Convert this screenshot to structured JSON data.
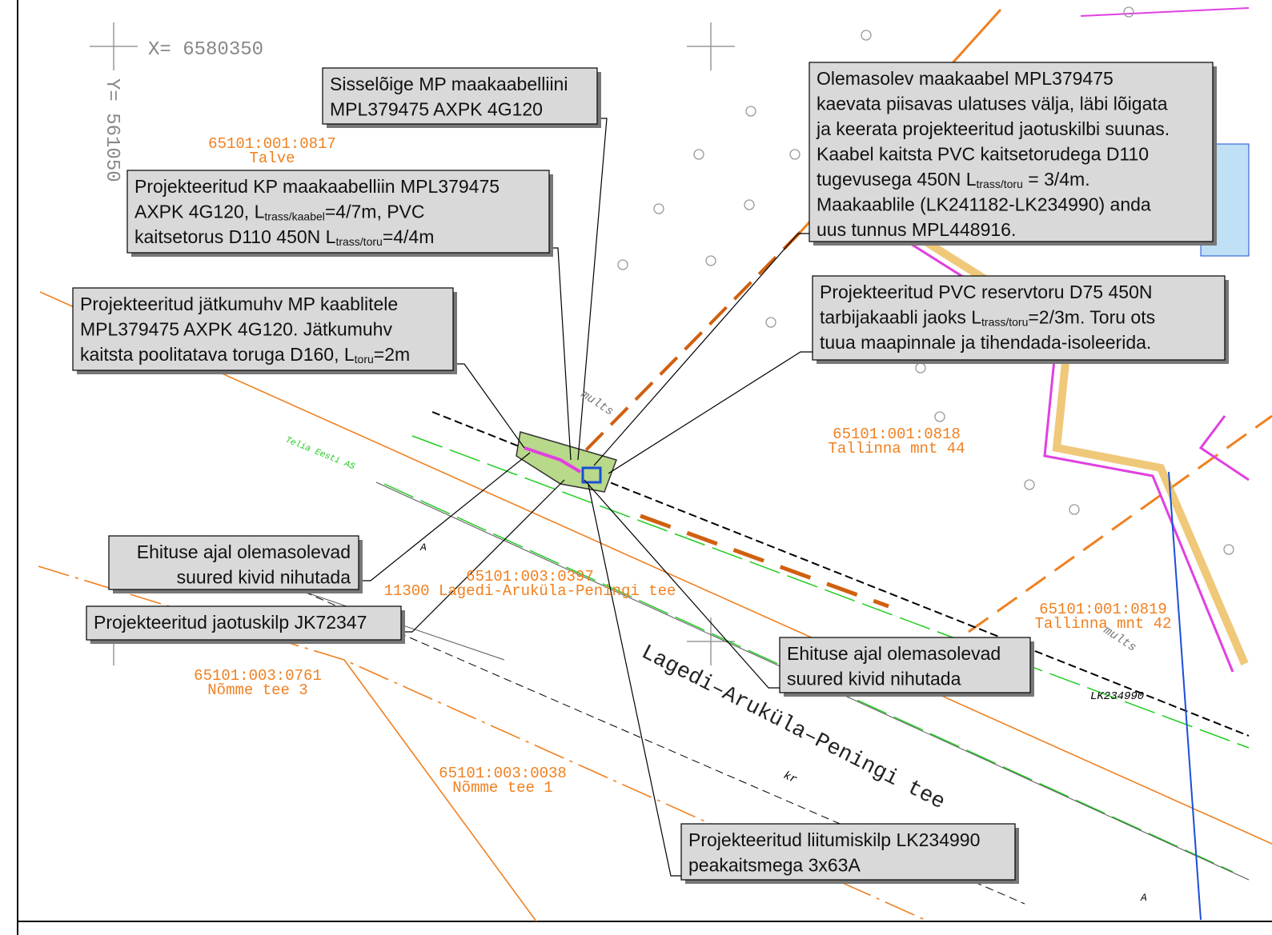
{
  "coordinates": {
    "x_label": "X= 6580350",
    "y_label": "Y= 561050"
  },
  "parcels": [
    {
      "id": "65101:001:0817",
      "name": "Talve"
    },
    {
      "id": "65101:001:0818",
      "name": "Tallinna mnt 44"
    },
    {
      "id": "65101:001:0819",
      "name": "Tallinna mnt 42"
    },
    {
      "id": "65101:003:0397",
      "name": "11300 Lagedi-Aruküla-Peningi tee"
    },
    {
      "id": "65101:003:0761",
      "name": "Nõmme tee 3"
    },
    {
      "id": "65101:003:0038",
      "name": "Nõmme tee 1"
    }
  ],
  "road_label": "Lagedi–Aruküla–Peningi tee",
  "labels": {
    "owner": "Telia Eesti AS",
    "mults_1": "mults",
    "mults_2": "mults",
    "cabinet": "LK234990",
    "a_1": "A",
    "a_2": "A",
    "kr": "kr"
  },
  "callouts": [
    {
      "lines": [
        [
          "Sisselõige MP maakaabelliini"
        ],
        [
          "MPL379475 AXPK 4G120"
        ]
      ]
    },
    {
      "lines": [
        [
          "Projekteeritud KP maakaabelliin MPL379475"
        ],
        [
          "AXPK 4G120, L",
          "trass/kaabel",
          "=4/7m, PVC"
        ],
        [
          "kaitsetorus D110 450N L",
          "trass/toru",
          "=4/4m"
        ]
      ]
    },
    {
      "lines": [
        [
          "Projekteeritud jätkumuhv MP kaablitele"
        ],
        [
          "MPL379475 AXPK 4G120. Jätkumuhv"
        ],
        [
          "kaitsta poolitatava toruga D160, L",
          "toru",
          "=2m"
        ]
      ]
    },
    {
      "lines": [
        [
          "Olemasolev maakaabel MPL379475"
        ],
        [
          "kaevata piisavas ulatuses välja, läbi lõigata"
        ],
        [
          "ja keerata projekteeritud jaotuskilbi suunas."
        ],
        [
          "Kaabel kaitsta PVC kaitsetorudega D110"
        ],
        [
          "tugevusega 450N L",
          "trass/toru",
          " = 3/4m."
        ],
        [
          "Maakaablile (LK241182-LK234990) anda"
        ],
        [
          "uus tunnus MPL448916."
        ]
      ]
    },
    {
      "lines": [
        [
          "Projekteeritud PVC reservtoru D75 450N"
        ],
        [
          "tarbijakaabli jaoks L",
          "trass/toru",
          "=2/3m. Toru ots"
        ],
        [
          "tuua maapinnale ja tihendada-isoleerida."
        ]
      ]
    },
    {
      "lines": [
        [
          "Ehituse ajal olemasolevad"
        ],
        [
          "suured kivid nihutada"
        ]
      ]
    },
    {
      "lines": [
        [
          "Projekteeritud jaotuskilp JK72347"
        ]
      ]
    },
    {
      "lines": [
        [
          "Ehituse ajal olemasolevad"
        ],
        [
          "suured kivid nihutada"
        ]
      ]
    },
    {
      "lines": [
        [
          "Projekteeritud liitumiskilp LK234990"
        ],
        [
          "peakaitsmega 3x63A"
        ]
      ]
    }
  ]
}
